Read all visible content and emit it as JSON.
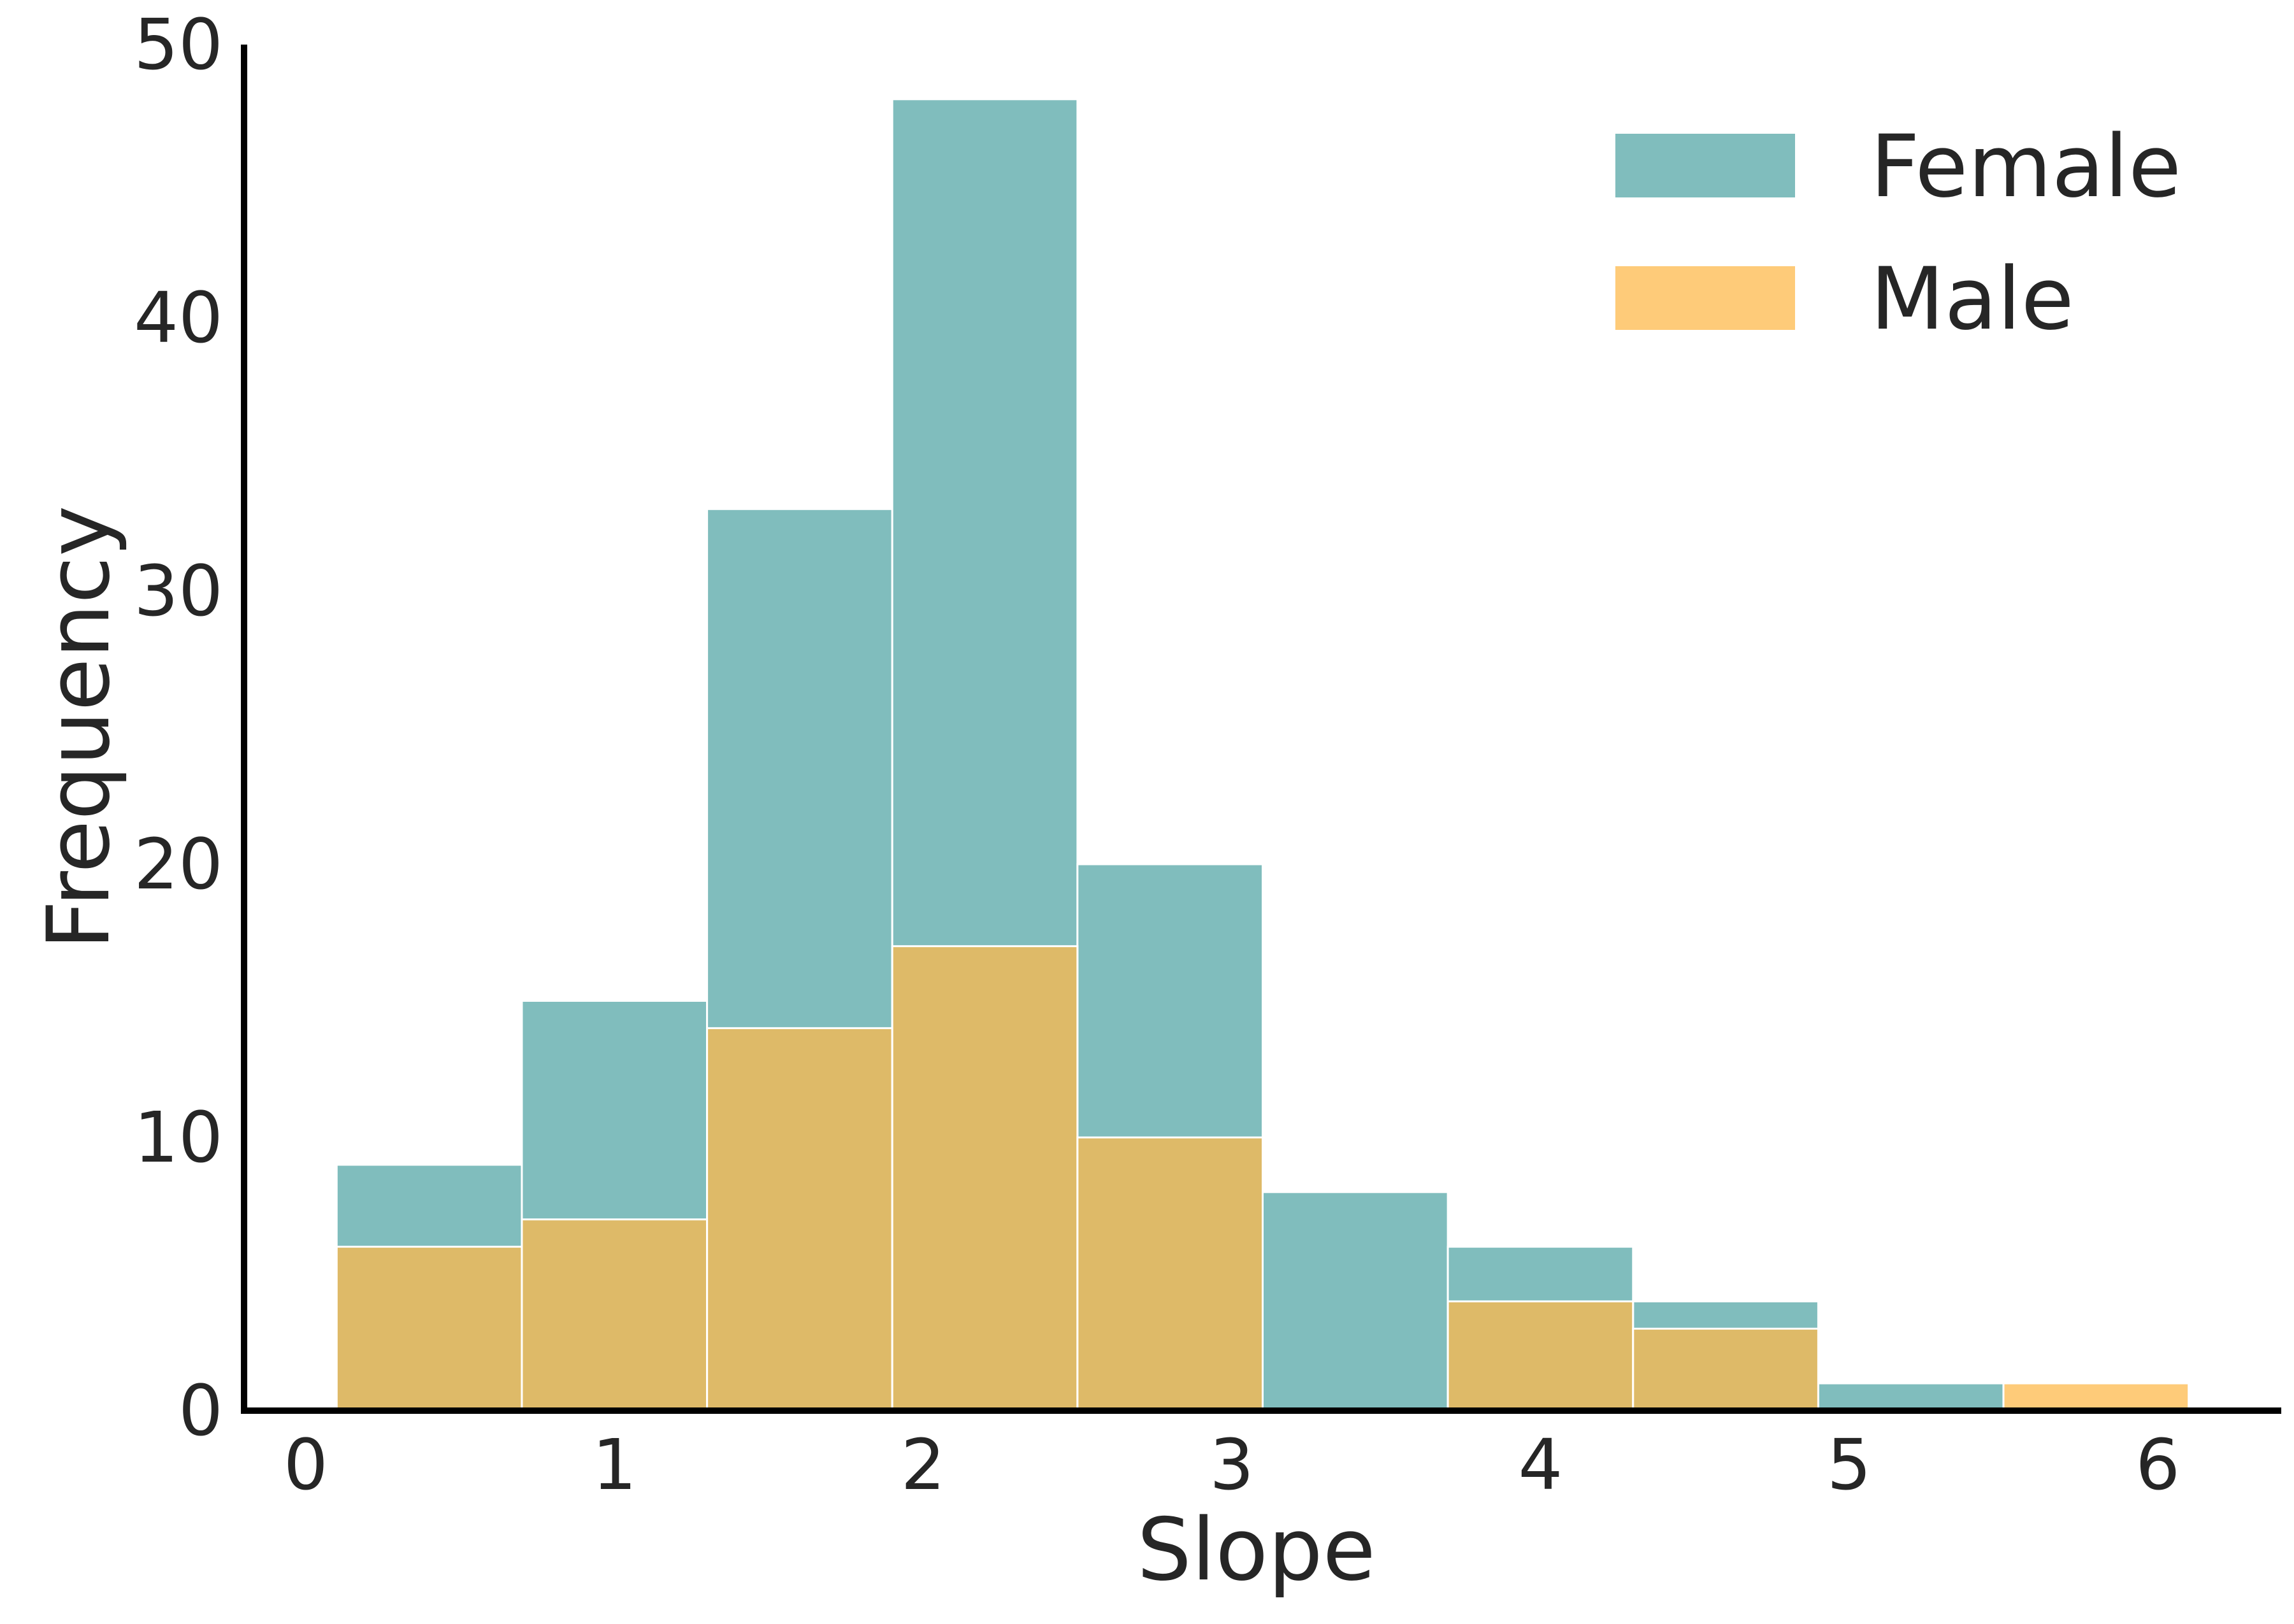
{
  "chart_data": {
    "type": "bar",
    "xlabel": "Slope",
    "ylabel": "Frequency",
    "xlim": [
      -0.2,
      6.4
    ],
    "ylim": [
      0,
      50
    ],
    "xticks": [
      "0",
      "1",
      "2",
      "3",
      "4",
      "5",
      "6"
    ],
    "yticks": [
      "0",
      "10",
      "20",
      "30",
      "40",
      "50"
    ],
    "grid": false,
    "legend": {
      "placement": "top-right"
    },
    "series": [
      {
        "name": "Female",
        "color": "#56a7a7",
        "bins": [
          {
            "x0": 0.1,
            "x1": 0.7,
            "value": 9
          },
          {
            "x0": 0.7,
            "x1": 1.3,
            "value": 15
          },
          {
            "x0": 1.3,
            "x1": 1.9,
            "value": 33
          },
          {
            "x0": 1.9,
            "x1": 2.5,
            "value": 48
          },
          {
            "x0": 2.5,
            "x1": 3.1,
            "value": 20
          },
          {
            "x0": 3.1,
            "x1": 3.7,
            "value": 8
          },
          {
            "x0": 3.7,
            "x1": 4.3,
            "value": 6
          },
          {
            "x0": 4.3,
            "x1": 4.9,
            "value": 4
          },
          {
            "x0": 4.9,
            "x1": 5.5,
            "value": 1
          }
        ]
      },
      {
        "name": "Male",
        "color": "#fdba4c",
        "bins": [
          {
            "x0": 0.1,
            "x1": 0.7,
            "value": 6
          },
          {
            "x0": 0.7,
            "x1": 1.3,
            "value": 7
          },
          {
            "x0": 1.3,
            "x1": 1.9,
            "value": 14
          },
          {
            "x0": 1.9,
            "x1": 2.5,
            "value": 17
          },
          {
            "x0": 2.5,
            "x1": 3.1,
            "value": 10
          },
          {
            "x0": 3.7,
            "x1": 4.3,
            "value": 4
          },
          {
            "x0": 4.3,
            "x1": 4.9,
            "value": 3
          },
          {
            "x0": 5.5,
            "x1": 6.1,
            "value": 1
          }
        ]
      }
    ]
  }
}
